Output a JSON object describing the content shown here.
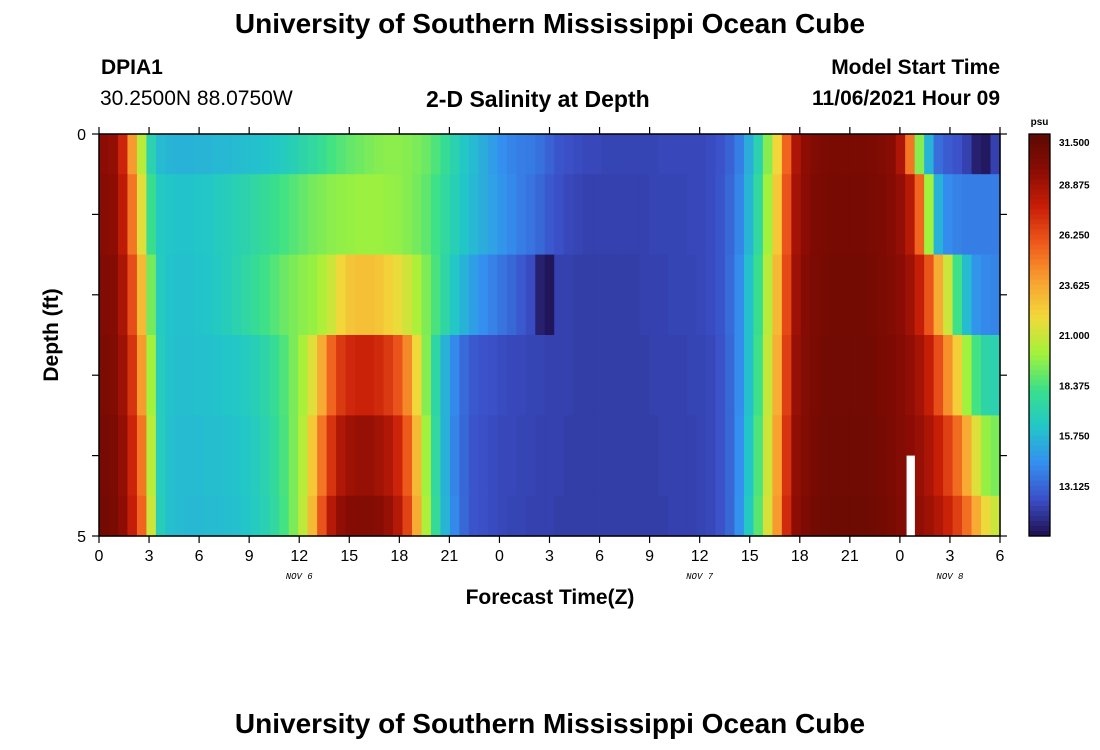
{
  "header": {
    "title": "University of Southern Mississippi Ocean Cube",
    "station_id": "DPIA1",
    "station_coords": "30.2500N  88.0750W",
    "plot_title": "2-D Salinity at Depth",
    "model_label": "Model Start Time",
    "model_time": "11/06/2021 Hour 09"
  },
  "footer": {
    "title": "University of Southern Mississippi Ocean Cube"
  },
  "chart_data": {
    "type": "heatmap",
    "title": "2-D Salinity at Depth",
    "xlabel": "Forecast Time(Z)",
    "ylabel": "Depth (ft)",
    "x_tick_labels": [
      "0",
      "3",
      "6",
      "9",
      "12",
      "15",
      "18",
      "21",
      "0",
      "3",
      "6",
      "9",
      "12",
      "15",
      "18",
      "21",
      "0",
      "3",
      "6"
    ],
    "x_date_labels": [
      {
        "label": "NOV 6",
        "hour": 12
      },
      {
        "label": "NOV 7",
        "hour": 36
      },
      {
        "label": "NOV 8",
        "hour": 51
      }
    ],
    "y_tick_labels": [
      "0",
      "5"
    ],
    "y_range": [
      0,
      5
    ],
    "x_range_hours": [
      0,
      54
    ],
    "colorbar": {
      "unit": "psu",
      "ticks": [
        "31.500",
        "28.875",
        "26.250",
        "23.625",
        "21.000",
        "18.375",
        "15.750",
        "13.125"
      ],
      "range": [
        10.5,
        31.5
      ],
      "colors": [
        "#1e0f4e",
        "#3b4fc8",
        "#3490f0",
        "#22c7c8",
        "#3ae08a",
        "#a4f23a",
        "#f2d83a",
        "#f8a030",
        "#ef5a1c",
        "#c81e08",
        "#8a0c04",
        "#5c0a02"
      ]
    },
    "gaps": [
      {
        "hour_start": 48.4,
        "hour_end": 48.9,
        "depth_start": 4.0,
        "depth_end": 5.0
      }
    ],
    "depth_bands": [
      0.0,
      0.5,
      1.5,
      2.5,
      3.5,
      4.5
    ],
    "salinity_rows": [
      [
        29.5,
        29.3,
        27.5,
        24.0,
        20.5,
        17.0,
        15.8,
        15.6,
        15.5,
        15.5,
        15.6,
        15.6,
        15.7,
        15.7,
        15.8,
        15.9,
        16.0,
        16.1,
        16.3,
        16.5,
        16.8,
        17.2,
        17.5,
        17.9,
        18.3,
        18.6,
        18.9,
        19.1,
        19.3,
        19.5,
        19.6,
        19.6,
        19.5,
        19.3,
        19.0,
        18.5,
        17.8,
        17.0,
        16.3,
        15.8,
        15.3,
        14.8,
        14.3,
        14.0,
        13.8,
        13.7,
        13.4,
        13.0,
        12.6,
        12.4,
        12.3,
        12.2,
        12.2,
        12.1,
        12.1,
        12.1,
        12.1,
        12.1,
        12.1,
        12.2,
        12.2,
        12.2,
        12.2,
        12.2,
        12.3,
        12.5,
        13.0,
        13.8,
        15.3,
        17.0,
        19.5,
        22.0,
        25.5,
        28.5,
        29.5,
        30.0,
        30.2,
        30.3,
        30.3,
        30.3,
        30.3,
        30.2,
        30.0,
        29.7,
        28.5,
        25.0,
        19.5,
        15.5,
        13.3,
        12.8,
        12.5,
        12.0,
        11.0,
        10.8,
        12.0
      ],
      [
        29.7,
        29.5,
        28.0,
        25.0,
        21.5,
        18.0,
        16.4,
        16.2,
        16.1,
        16.1,
        16.2,
        16.3,
        16.5,
        16.7,
        16.9,
        17.1,
        17.4,
        17.7,
        18.0,
        18.3,
        18.6,
        18.9,
        19.2,
        19.4,
        19.6,
        19.7,
        19.8,
        19.9,
        19.9,
        19.9,
        19.8,
        19.7,
        19.5,
        19.2,
        18.8,
        18.2,
        17.5,
        16.8,
        16.2,
        15.7,
        15.3,
        14.9,
        14.5,
        14.1,
        13.8,
        13.5,
        13.1,
        12.7,
        12.4,
        12.2,
        12.1,
        12.0,
        12.0,
        12.0,
        12.0,
        12.0,
        12.0,
        12.0,
        12.1,
        12.1,
        12.1,
        12.1,
        12.2,
        12.2,
        12.3,
        12.6,
        13.1,
        14.0,
        15.6,
        17.5,
        20.0,
        22.5,
        26.0,
        28.8,
        29.6,
        30.1,
        30.3,
        30.4,
        30.4,
        30.4,
        30.4,
        30.3,
        30.1,
        29.8,
        29.3,
        28.2,
        25.5,
        20.0,
        15.5,
        14.2,
        13.9,
        13.8,
        13.8,
        13.8,
        13.8
      ],
      [
        30.0,
        29.8,
        28.6,
        26.2,
        23.0,
        19.2,
        16.5,
        16.1,
        16.0,
        16.0,
        16.1,
        16.2,
        16.4,
        16.7,
        17.0,
        17.4,
        17.8,
        18.2,
        18.6,
        19.0,
        19.3,
        19.6,
        19.8,
        20.3,
        21.0,
        22.0,
        22.6,
        22.8,
        22.8,
        22.6,
        22.2,
        21.7,
        21.1,
        20.3,
        19.4,
        18.4,
        17.3,
        16.3,
        15.5,
        14.8,
        14.3,
        13.9,
        13.5,
        13.1,
        12.7,
        12.3,
        11.0,
        10.7,
        12.0,
        12.0,
        11.9,
        11.9,
        11.9,
        11.9,
        11.9,
        11.9,
        11.9,
        12.0,
        12.0,
        12.0,
        12.1,
        12.1,
        12.1,
        12.2,
        12.3,
        12.6,
        13.2,
        14.2,
        16.0,
        18.0,
        20.5,
        23.0,
        26.3,
        29.0,
        29.8,
        30.2,
        30.4,
        30.5,
        30.5,
        30.5,
        30.5,
        30.4,
        30.2,
        30.0,
        29.6,
        29.0,
        27.8,
        26.0,
        23.5,
        21.0,
        18.2,
        15.8,
        14.5,
        14.1,
        14.0
      ],
      [
        30.2,
        30.0,
        29.0,
        27.0,
        24.0,
        20.0,
        16.6,
        16.1,
        15.9,
        15.9,
        16.0,
        16.0,
        16.1,
        16.2,
        16.3,
        16.5,
        16.8,
        17.2,
        17.8,
        18.5,
        19.3,
        20.2,
        21.5,
        23.5,
        25.5,
        26.8,
        27.4,
        27.6,
        27.6,
        27.3,
        26.8,
        26.0,
        24.5,
        22.0,
        19.5,
        17.3,
        15.5,
        14.1,
        13.2,
        12.7,
        12.5,
        12.4,
        12.3,
        12.2,
        12.2,
        12.1,
        12.1,
        12.0,
        12.0,
        12.0,
        11.9,
        11.9,
        11.9,
        11.9,
        11.9,
        11.9,
        11.9,
        11.9,
        12.0,
        12.0,
        12.0,
        12.0,
        12.1,
        12.1,
        12.2,
        12.5,
        13.1,
        14.2,
        16.0,
        18.2,
        20.8,
        23.4,
        26.6,
        29.2,
        29.9,
        30.3,
        30.5,
        30.6,
        30.6,
        30.6,
        30.6,
        30.5,
        30.3,
        30.1,
        29.8,
        29.4,
        28.8,
        27.8,
        26.2,
        24.3,
        22.3,
        20.0,
        18.3,
        17.2,
        17.0
      ],
      [
        30.4,
        30.2,
        29.3,
        27.5,
        25.0,
        20.5,
        16.6,
        16.0,
        15.8,
        15.8,
        15.8,
        15.9,
        15.9,
        16.0,
        16.1,
        16.3,
        16.6,
        17.0,
        17.6,
        18.4,
        19.3,
        20.5,
        22.5,
        25.0,
        27.0,
        28.4,
        29.0,
        29.2,
        29.2,
        28.9,
        28.4,
        27.5,
        25.8,
        23.0,
        20.0,
        17.5,
        15.5,
        14.0,
        13.1,
        12.6,
        12.4,
        12.3,
        12.2,
        12.2,
        12.1,
        12.1,
        12.0,
        12.0,
        12.0,
        11.9,
        11.9,
        11.9,
        11.9,
        11.9,
        11.9,
        11.9,
        11.9,
        11.9,
        11.9,
        12.0,
        12.0,
        12.0,
        12.0,
        12.1,
        12.2,
        12.5,
        13.1,
        14.3,
        16.2,
        18.5,
        21.0,
        23.8,
        27.0,
        29.4,
        30.0,
        30.4,
        30.6,
        30.7,
        30.7,
        30.7,
        30.7,
        30.6,
        30.4,
        30.2,
        29.9,
        29.6,
        29.2,
        28.6,
        27.7,
        26.6,
        25.3,
        23.5,
        21.5,
        19.8,
        19.3
      ],
      [
        30.5,
        30.3,
        29.5,
        27.8,
        25.5,
        21.0,
        16.7,
        16.0,
        15.8,
        15.7,
        15.7,
        15.8,
        15.8,
        15.9,
        16.0,
        16.2,
        16.5,
        16.9,
        17.5,
        18.3,
        19.3,
        20.7,
        23.0,
        26.0,
        28.2,
        29.4,
        29.8,
        29.9,
        29.9,
        29.7,
        29.2,
        28.3,
        26.5,
        23.5,
        20.3,
        17.7,
        15.6,
        14.1,
        13.1,
        12.6,
        12.4,
        12.3,
        12.2,
        12.1,
        12.1,
        12.0,
        12.0,
        12.0,
        11.9,
        11.9,
        11.9,
        11.9,
        11.9,
        11.9,
        11.9,
        11.9,
        11.9,
        11.9,
        11.9,
        11.9,
        12.0,
        12.0,
        12.0,
        12.1,
        12.2,
        12.5,
        13.1,
        14.4,
        16.4,
        18.7,
        21.3,
        24.0,
        27.3,
        29.5,
        30.1,
        30.5,
        30.7,
        30.8,
        30.8,
        30.8,
        30.8,
        30.7,
        30.5,
        30.3,
        30.0,
        29.7,
        29.4,
        29.0,
        28.4,
        27.6,
        26.6,
        25.2,
        23.5,
        21.8,
        21.0
      ]
    ]
  }
}
